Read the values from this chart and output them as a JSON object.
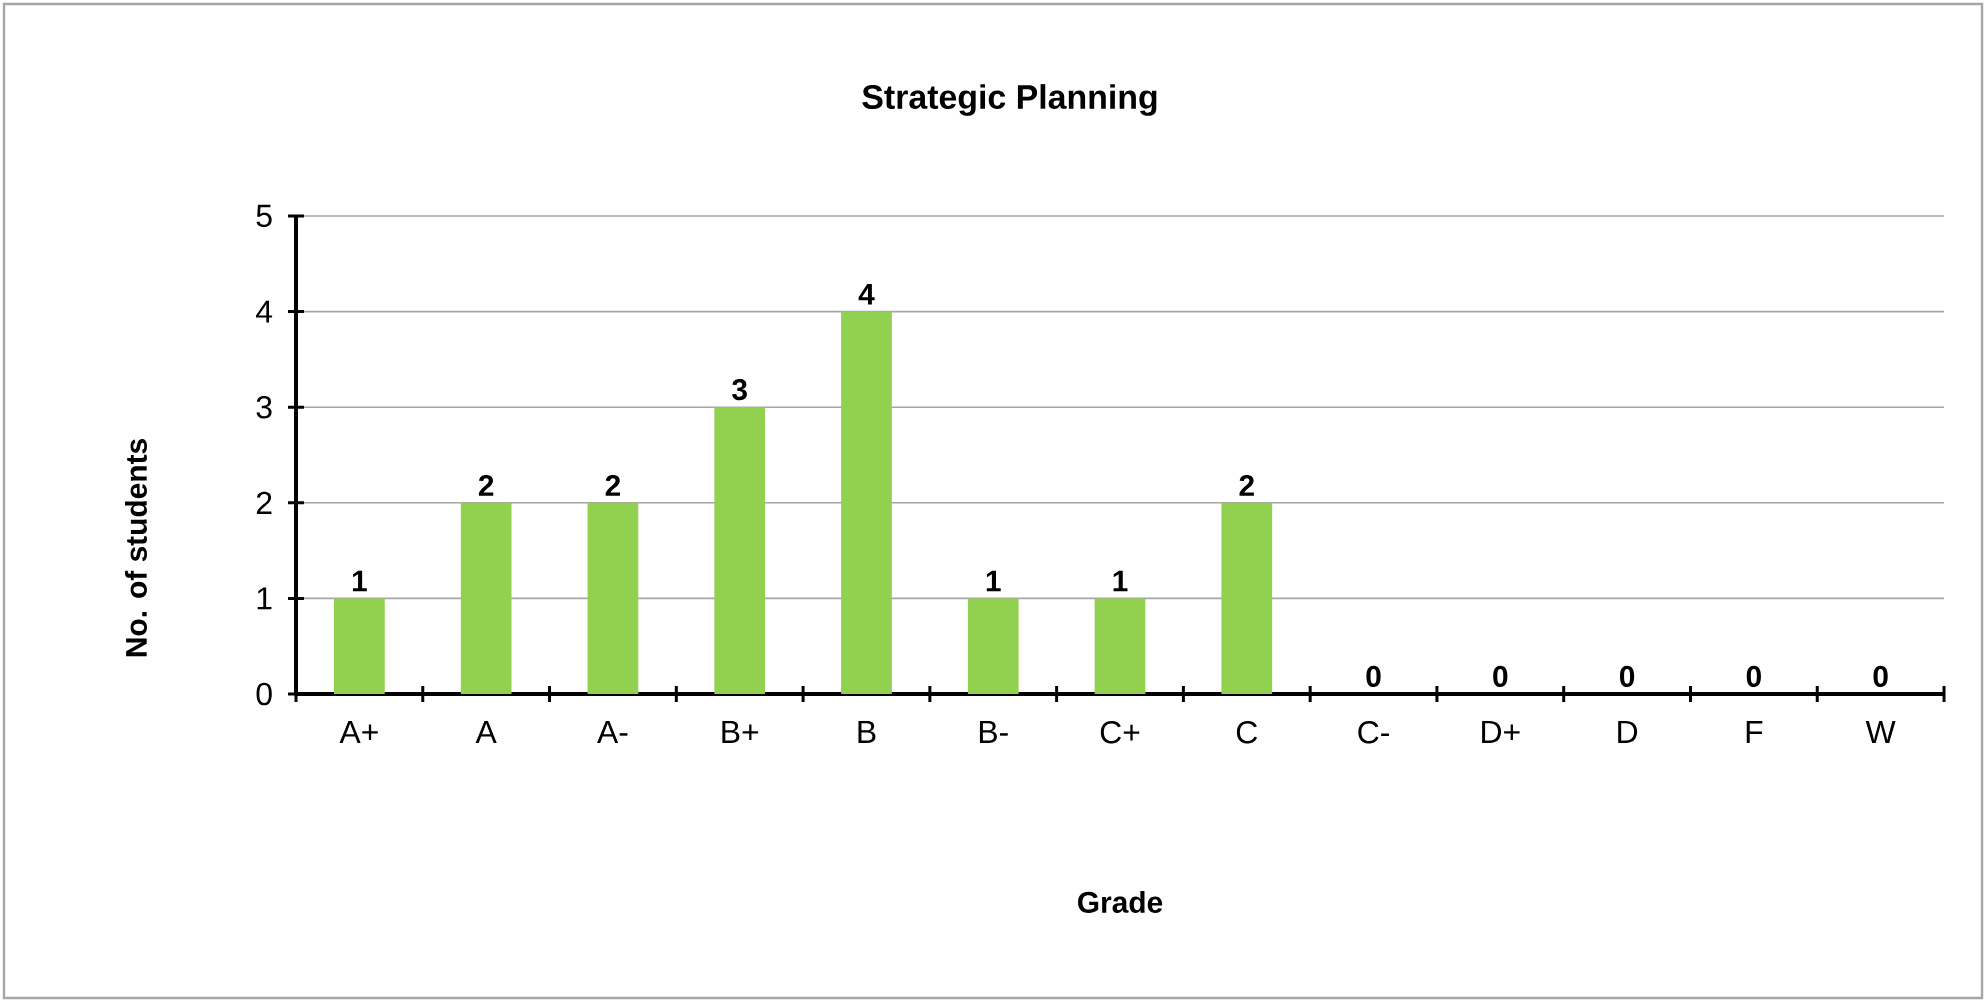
{
  "chart_data": {
    "type": "bar",
    "title": "Strategic Planning",
    "xlabel": "Grade",
    "ylabel": "No. of students",
    "categories": [
      "A+",
      "A",
      "A-",
      "B+",
      "B",
      "B-",
      "C+",
      "C",
      "C-",
      "D+",
      "D",
      "F",
      "W"
    ],
    "values": [
      1,
      2,
      2,
      3,
      4,
      1,
      1,
      2,
      0,
      0,
      0,
      0,
      0
    ],
    "color": "#92d050",
    "ylim": [
      0,
      5
    ],
    "yticks": [
      0,
      1,
      2,
      3,
      4,
      5
    ],
    "grid": "y",
    "data_labels": true
  }
}
